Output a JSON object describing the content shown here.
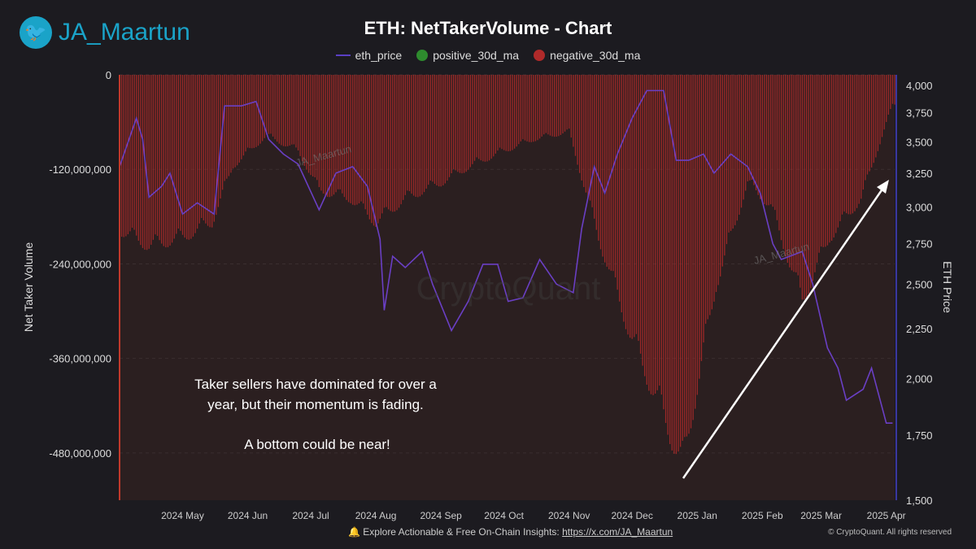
{
  "brand": {
    "handle": "JA_Maartun",
    "icon": "twitter-bird-icon"
  },
  "footer": {
    "text": "Explore Actionable & Free On-Chain Insights:",
    "link": "https://x.com/JA_Maartun",
    "copyright": "© CryptoQuant. All rights reserved",
    "icon": "bell-icon"
  },
  "colors": {
    "eth_price": "#6a3fc4",
    "positive": "#2e8b2e",
    "negative": "#b02a2a",
    "background": "#1c1b20",
    "plot": "#2b1f20"
  },
  "chart_data": {
    "type": "bar+line",
    "title": "ETH: NetTakerVolume - Chart",
    "legend": [
      "eth_price",
      "positive_30d_ma",
      "negative_30d_ma"
    ],
    "legend_placement": "top",
    "ylabel": "Net Taker Volume",
    "y2label": "ETH Price",
    "ylim": [
      -540000000,
      0
    ],
    "yticks": [
      0,
      -120000000,
      -240000000,
      -360000000,
      -480000000
    ],
    "ytick_labels": [
      "0",
      "-120,000,000",
      "-240,000,000",
      "-360,000,000",
      "-480,000,000"
    ],
    "y2lim": [
      1500,
      4100
    ],
    "y2scale": "log",
    "y2ticks": [
      1500,
      1750,
      2000,
      2250,
      2500,
      2750,
      3000,
      3250,
      3500,
      3750,
      4000
    ],
    "y2tick_labels": [
      "1,500",
      "1,750",
      "2,000",
      "2,250",
      "2,500",
      "2,750",
      "3,000",
      "3,250",
      "3,500",
      "3,750",
      "4,000"
    ],
    "xlim": [
      "2024-04-01",
      "2025-04-05"
    ],
    "xticks": [
      "2024-05-01",
      "2024-06-01",
      "2024-07-01",
      "2024-08-01",
      "2024-09-01",
      "2024-10-01",
      "2024-11-01",
      "2024-12-01",
      "2025-01-01",
      "2025-02-01",
      "2025-03-01",
      "2025-04-01"
    ],
    "xtick_labels": [
      "2024 May",
      "2024 Jun",
      "2024 Jul",
      "2024 Aug",
      "2024 Sep",
      "2024 Oct",
      "2024 Nov",
      "2024 Dec",
      "2025 Jan",
      "2025 Feb",
      "2025 Mar",
      "2025 Apr"
    ],
    "grid": true,
    "negative_30d_ma": {
      "dates": [
        "2024-04-01",
        "2024-04-15",
        "2024-05-01",
        "2024-05-15",
        "2024-05-25",
        "2024-06-10",
        "2024-06-25",
        "2024-07-05",
        "2024-07-20",
        "2024-08-01",
        "2024-08-15",
        "2024-09-01",
        "2024-09-15",
        "2024-10-01",
        "2024-10-15",
        "2024-11-01",
        "2024-11-15",
        "2024-12-01",
        "2024-12-15",
        "2024-12-25",
        "2025-01-10",
        "2025-01-25",
        "2025-02-05",
        "2025-02-20",
        "2025-03-05",
        "2025-03-20",
        "2025-04-04"
      ],
      "values": [
        -204000000,
        -225000000,
        -214000000,
        -194000000,
        -120000000,
        -80000000,
        -100000000,
        -152000000,
        -163000000,
        -194000000,
        -163000000,
        -142000000,
        -120000000,
        -100000000,
        -85000000,
        -75000000,
        -214000000,
        -348000000,
        -441000000,
        -513000000,
        -276000000,
        -142000000,
        -173000000,
        -297000000,
        -214000000,
        -163000000,
        -39000000
      ]
    },
    "positive_30d_ma": {
      "dates": [],
      "values": []
    },
    "eth_price": {
      "dates": [
        "2024-04-01",
        "2024-04-09",
        "2024-04-12",
        "2024-04-15",
        "2024-04-21",
        "2024-04-25",
        "2024-05-01",
        "2024-05-08",
        "2024-05-16",
        "2024-05-21",
        "2024-05-29",
        "2024-06-05",
        "2024-06-11",
        "2024-06-18",
        "2024-06-25",
        "2024-07-05",
        "2024-07-13",
        "2024-07-21",
        "2024-07-28",
        "2024-08-03",
        "2024-08-05",
        "2024-08-09",
        "2024-08-15",
        "2024-08-23",
        "2024-08-28",
        "2024-09-06",
        "2024-09-14",
        "2024-09-21",
        "2024-09-28",
        "2024-10-03",
        "2024-10-10",
        "2024-10-18",
        "2024-10-26",
        "2024-11-03",
        "2024-11-07",
        "2024-11-13",
        "2024-11-18",
        "2024-11-24",
        "2024-12-01",
        "2024-12-08",
        "2024-12-16",
        "2024-12-22",
        "2024-12-28",
        "2025-01-04",
        "2025-01-09",
        "2025-01-17",
        "2025-01-25",
        "2025-01-31",
        "2025-02-06",
        "2025-02-10",
        "2025-02-20",
        "2025-02-25",
        "2025-03-04",
        "2025-03-09",
        "2025-03-13",
        "2025-03-21",
        "2025-03-25",
        "2025-04-01",
        "2025-04-04"
      ],
      "values": [
        3300,
        3700,
        3520,
        3070,
        3150,
        3250,
        2950,
        3030,
        2950,
        3810,
        3810,
        3850,
        3520,
        3400,
        3320,
        2980,
        3250,
        3300,
        3150,
        2780,
        2350,
        2670,
        2600,
        2700,
        2500,
        2240,
        2400,
        2620,
        2620,
        2400,
        2420,
        2650,
        2500,
        2450,
        2850,
        3300,
        3100,
        3400,
        3700,
        3950,
        3950,
        3350,
        3350,
        3400,
        3250,
        3400,
        3300,
        3100,
        2750,
        2650,
        2700,
        2500,
        2150,
        2050,
        1900,
        1950,
        2050,
        1800,
        1800
      ]
    },
    "annotations": [
      "Taker sellers have dominated for over a",
      "year, but their momentum is fading.",
      "A bottom could be near!"
    ],
    "watermarks": [
      "JA_Maartun",
      "CryptoQuant"
    ]
  }
}
